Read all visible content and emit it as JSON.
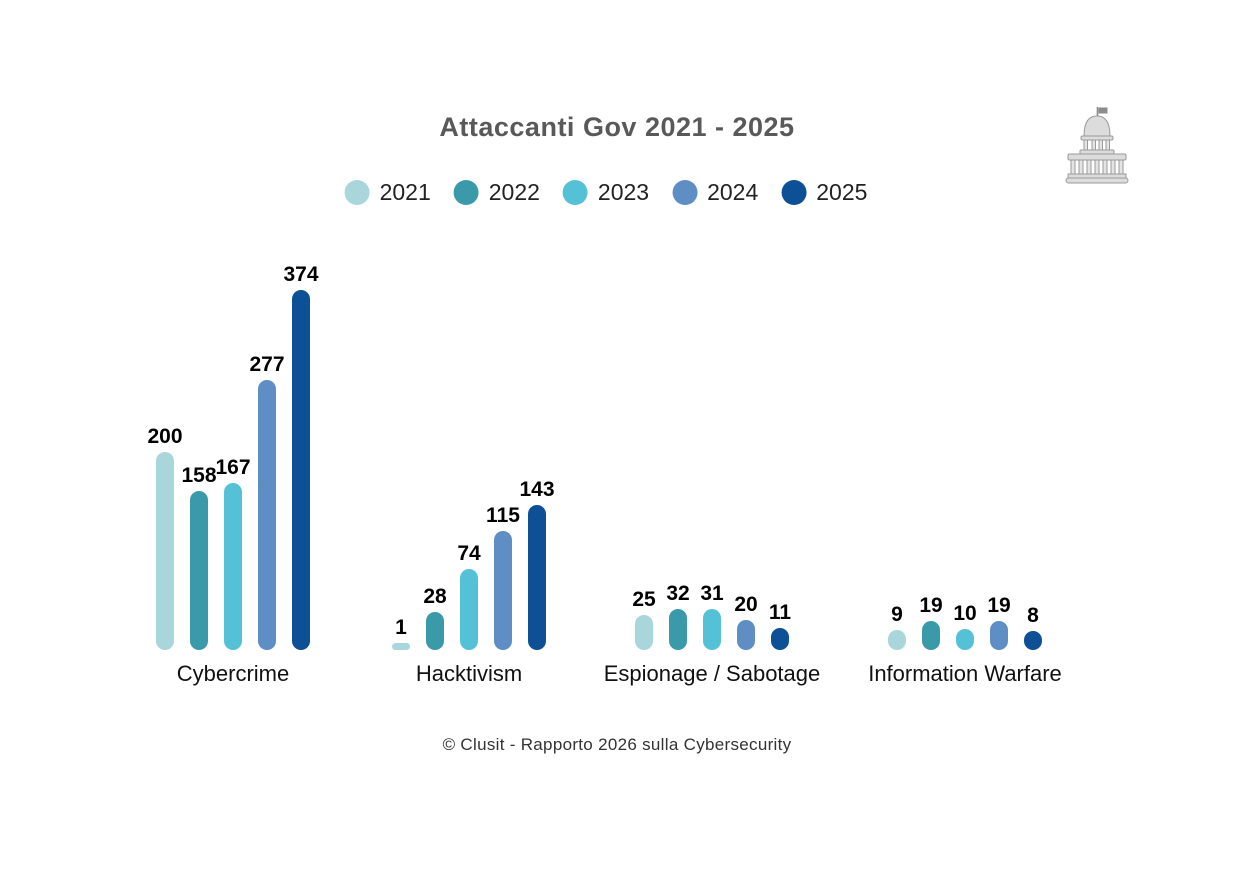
{
  "title": "Attaccanti Gov 2021 - 2025",
  "footer": "© Clusit - Rapporto 2026 sulla Cybersecurity",
  "icons": {
    "top_right": "government-building-icon"
  },
  "colors": {
    "title_text": "#595959",
    "label_text": "#000000",
    "building_fill": "#dcdcdc",
    "building_stroke": "#9a9a9a",
    "background": "#ffffff"
  },
  "chart_data": {
    "type": "bar",
    "title": "Attaccanti Gov 2021 - 2025",
    "categories": [
      "Cybercrime",
      "Hacktivism",
      "Espionage / Sabotage",
      "Information Warfare"
    ],
    "series": [
      {
        "name": "2021",
        "color": "#a9d6da",
        "values": [
          200,
          1,
          25,
          9
        ]
      },
      {
        "name": "2022",
        "color": "#3b9aa9",
        "values": [
          158,
          28,
          32,
          19
        ]
      },
      {
        "name": "2023",
        "color": "#55c1d6",
        "values": [
          167,
          74,
          31,
          10
        ]
      },
      {
        "name": "2024",
        "color": "#5e8ec3",
        "values": [
          277,
          115,
          20,
          19
        ]
      },
      {
        "name": "2025",
        "color": "#0d5096",
        "values": [
          374,
          143,
          11,
          8
        ]
      }
    ],
    "legend_position": "top",
    "grid": false,
    "value_labels": true,
    "xlabel": "",
    "ylabel": "",
    "axis_visible": false
  }
}
